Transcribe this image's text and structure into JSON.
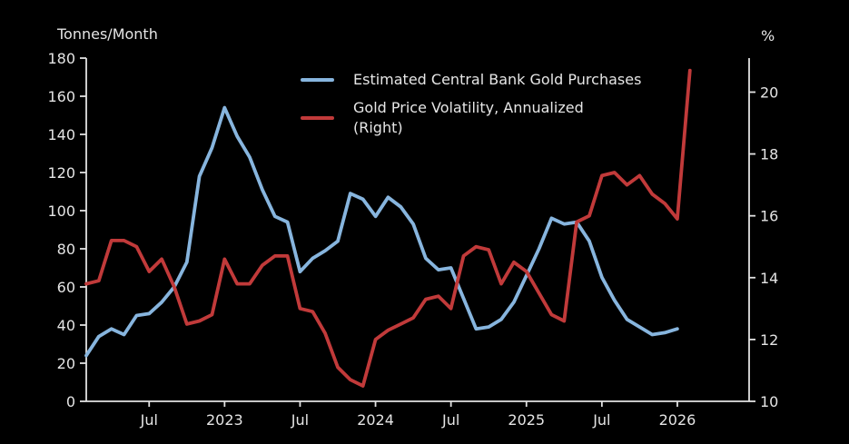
{
  "chart_data": {
    "type": "line",
    "frequency": "monthly",
    "start_month": "2022-02",
    "left_axis": {
      "title": "Tonnes/Month",
      "min": 0,
      "max": 180,
      "ticks": [
        0,
        20,
        40,
        60,
        80,
        100,
        120,
        140,
        160,
        180
      ]
    },
    "right_axis": {
      "title": "%",
      "min": 10,
      "max": 21.1,
      "ticks": [
        10,
        12,
        14,
        16,
        18,
        20
      ]
    },
    "x_axis": {
      "tick_labels": [
        "Jul",
        "2023",
        "Jul",
        "2024",
        "Jul",
        "2025",
        "Jul",
        "2026"
      ],
      "tick_month_index": [
        5,
        11,
        17,
        23,
        29,
        35,
        41,
        47
      ]
    },
    "series": [
      {
        "name": "Estimated Central Bank Gold Purchases",
        "axis": "left",
        "color": "#87b5de",
        "values": [
          24,
          34,
          38,
          35,
          45,
          46,
          52,
          60,
          73,
          118,
          133,
          154,
          139,
          128,
          111,
          97,
          94,
          68,
          75,
          79,
          84,
          109,
          106,
          97,
          107,
          102,
          93,
          75,
          69,
          70,
          54,
          38,
          39,
          43,
          52,
          66,
          80,
          96,
          93,
          94,
          84,
          65,
          53,
          43,
          39,
          35,
          36,
          38
        ]
      },
      {
        "name": "Gold Price Volatility, Annualized (Right)",
        "axis": "right",
        "color": "#c13a3a",
        "values": [
          13.8,
          13.9,
          15.2,
          15.2,
          15.0,
          14.2,
          14.6,
          13.7,
          12.5,
          12.6,
          12.8,
          14.6,
          13.8,
          13.8,
          14.4,
          14.7,
          14.7,
          13.0,
          12.9,
          12.2,
          11.1,
          10.7,
          10.5,
          12.0,
          12.3,
          12.5,
          12.7,
          13.3,
          13.4,
          13.0,
          14.7,
          15.0,
          14.9,
          13.8,
          14.5,
          14.2,
          13.5,
          12.8,
          12.6,
          15.8,
          16.0,
          17.3,
          17.4,
          17.0,
          17.3,
          16.7,
          16.4,
          15.9,
          20.7
        ]
      }
    ],
    "legend": {
      "position": "upper center",
      "entries": [
        {
          "label_line1": "Estimated Central Bank Gold Purchases",
          "label_line2": ""
        },
        {
          "label_line1": "Gold Price Volatility, Annualized",
          "label_line2": "(Right)"
        }
      ]
    },
    "grid": "off",
    "background": "#000000"
  }
}
